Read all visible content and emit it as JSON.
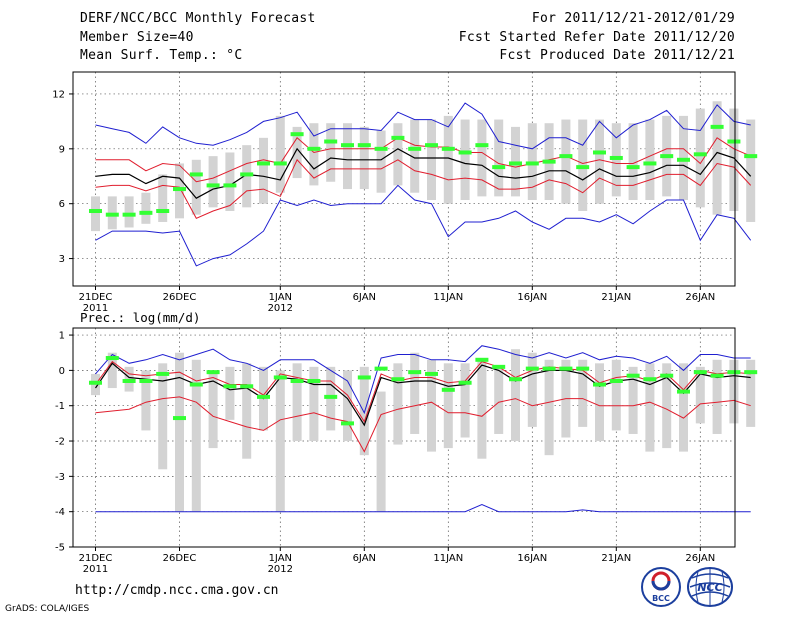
{
  "header": {
    "title": "DERF/NCC/BCC Monthly Forecast",
    "member_size": "Member Size=40",
    "variable": "Mean Surf. Temp.: °C",
    "period": "For 2011/12/21-2012/01/29",
    "started": "Fcst Started Refer Date 2011/12/20",
    "produced": "Fcst Produced Date 2011/12/21"
  },
  "footer": {
    "url": "http://cmdp.ncc.cma.gov.cn",
    "credit": "GrADS: COLA/IGES",
    "logo_bcc": "BCC",
    "logo_ncc": "NCC"
  },
  "colors": {
    "box": "#d3d3d3",
    "median": "#33ff33",
    "mean": "#000000",
    "inner": "#e01e2e",
    "outer": "#1f1fd0",
    "grid": "#555555"
  },
  "chart_data": [
    {
      "type": "box-ensemble",
      "title": "Mean Surf. Temp.: °C",
      "ylabel": "",
      "ylim": [
        1.5,
        13.2
      ],
      "yticks": [
        3,
        6,
        9,
        12
      ],
      "xticks": [
        {
          "day": 1,
          "label": "21DEC",
          "sub": "2011"
        },
        {
          "day": 6,
          "label": "26DEC",
          "sub": ""
        },
        {
          "day": 12,
          "label": "1JAN",
          "sub": "2012"
        },
        {
          "day": 17,
          "label": "6JAN",
          "sub": ""
        },
        {
          "day": 22,
          "label": "11JAN",
          "sub": ""
        },
        {
          "day": 27,
          "label": "16JAN",
          "sub": ""
        },
        {
          "day": 32,
          "label": "21JAN",
          "sub": ""
        },
        {
          "day": 37,
          "label": "26JAN",
          "sub": ""
        }
      ],
      "days": 40,
      "box_low": [
        4.5,
        4.6,
        4.7,
        4.9,
        5.0,
        5.2,
        5.4,
        5.8,
        5.6,
        5.8,
        6.0,
        6.6,
        7.4,
        7.0,
        7.2,
        6.8,
        6.8,
        6.6,
        7.0,
        6.6,
        6.2,
        6.0,
        6.2,
        6.4,
        6.4,
        6.4,
        6.2,
        6.2,
        6.0,
        5.6,
        6.0,
        6.4,
        6.2,
        6.2,
        6.4,
        6.2,
        5.8,
        5.4,
        5.6,
        5.0
      ],
      "box_high": [
        6.4,
        6.4,
        6.4,
        6.6,
        7.6,
        8.2,
        8.4,
        8.6,
        8.8,
        9.2,
        9.6,
        10.8,
        10.2,
        10.4,
        10.4,
        10.4,
        10.2,
        10.0,
        10.4,
        10.6,
        10.6,
        10.8,
        10.6,
        10.6,
        10.6,
        10.2,
        10.4,
        10.4,
        10.6,
        10.6,
        10.6,
        10.4,
        10.4,
        10.6,
        10.8,
        10.8,
        11.2,
        11.6,
        11.2,
        10.6
      ],
      "median": [
        5.6,
        5.4,
        5.4,
        5.5,
        5.6,
        6.8,
        7.6,
        7.0,
        7.0,
        7.6,
        8.2,
        8.2,
        9.8,
        9.0,
        9.4,
        9.2,
        9.2,
        9.0,
        9.6,
        9.0,
        9.2,
        9.0,
        8.8,
        9.2,
        8.0,
        8.2,
        8.2,
        8.3,
        8.6,
        8.0,
        8.8,
        8.5,
        8.0,
        8.2,
        8.6,
        8.4,
        8.7,
        10.2,
        9.4,
        8.6
      ],
      "mean": [
        7.5,
        7.6,
        7.6,
        7.1,
        7.5,
        7.4,
        6.3,
        6.8,
        7.0,
        7.6,
        7.5,
        7.3,
        9.0,
        7.9,
        8.5,
        8.4,
        8.4,
        8.4,
        9.0,
        8.5,
        8.5,
        8.5,
        8.2,
        8.1,
        7.5,
        7.4,
        7.5,
        7.8,
        7.8,
        7.3,
        7.9,
        7.5,
        7.5,
        7.7,
        8.1,
        8.1,
        7.6,
        8.8,
        8.5,
        7.5
      ],
      "inner_high": [
        8.4,
        8.4,
        8.4,
        7.8,
        8.2,
        8.1,
        7.2,
        7.4,
        7.8,
        8.2,
        8.4,
        8.2,
        9.6,
        8.8,
        9.0,
        9.0,
        9.0,
        9.0,
        9.6,
        9.2,
        9.1,
        9.1,
        8.8,
        8.8,
        8.2,
        8.0,
        8.2,
        8.4,
        8.6,
        8.2,
        8.4,
        8.2,
        8.2,
        8.6,
        9.0,
        9.0,
        8.2,
        9.6,
        9.0,
        8.6
      ],
      "inner_low": [
        6.9,
        7.0,
        7.0,
        6.7,
        7.0,
        6.9,
        5.2,
        5.6,
        5.9,
        6.7,
        6.8,
        6.4,
        8.4,
        7.4,
        7.9,
        7.9,
        7.9,
        7.9,
        8.4,
        7.8,
        7.6,
        7.3,
        7.4,
        7.3,
        6.8,
        6.8,
        6.9,
        7.3,
        7.1,
        6.6,
        7.4,
        7.0,
        7.0,
        7.3,
        7.6,
        7.6,
        7.0,
        8.2,
        8.0,
        7.0
      ],
      "outer_high": [
        10.3,
        10.1,
        9.9,
        9.3,
        10.2,
        9.6,
        9.3,
        9.2,
        9.5,
        9.9,
        10.5,
        10.7,
        11.0,
        9.7,
        10.1,
        10.1,
        10.1,
        10.0,
        11.0,
        10.6,
        10.6,
        10.2,
        11.5,
        10.9,
        9.4,
        9.2,
        9.0,
        9.6,
        9.6,
        9.2,
        10.5,
        9.6,
        10.3,
        10.6,
        11.1,
        10.1,
        10.0,
        11.4,
        10.5,
        10.3
      ],
      "outer_low": [
        4.0,
        4.5,
        4.5,
        4.5,
        4.4,
        4.5,
        2.6,
        3.0,
        3.2,
        3.8,
        4.5,
        6.2,
        5.9,
        6.2,
        5.9,
        6.0,
        6.0,
        6.0,
        7.0,
        6.2,
        6.0,
        4.2,
        5.0,
        5.0,
        5.2,
        5.6,
        5.0,
        4.6,
        5.2,
        5.2,
        5.0,
        5.4,
        4.9,
        5.6,
        6.2,
        6.2,
        4.0,
        5.4,
        5.2,
        4.0
      ]
    },
    {
      "type": "box-ensemble",
      "title": "Prec.: log(mm/d)",
      "ylabel": "",
      "ylim": [
        -5,
        1.2
      ],
      "yticks": [
        -5,
        -4,
        -3,
        -2,
        -1,
        0,
        1
      ],
      "xticks": [
        {
          "day": 1,
          "label": "21DEC",
          "sub": "2011"
        },
        {
          "day": 6,
          "label": "26DEC",
          "sub": ""
        },
        {
          "day": 12,
          "label": "1JAN",
          "sub": "2012"
        },
        {
          "day": 17,
          "label": "6JAN",
          "sub": ""
        },
        {
          "day": 22,
          "label": "11JAN",
          "sub": ""
        },
        {
          "day": 27,
          "label": "16JAN",
          "sub": ""
        },
        {
          "day": 32,
          "label": "21JAN",
          "sub": ""
        },
        {
          "day": 37,
          "label": "26JAN",
          "sub": ""
        }
      ],
      "days": 40,
      "box_low": [
        -0.7,
        -0.5,
        -0.6,
        -1.7,
        -2.8,
        -4.0,
        -4.0,
        -2.2,
        -1.4,
        -2.5,
        -1.7,
        -4.0,
        -2.0,
        -2.0,
        -1.7,
        -2.0,
        -2.4,
        -4.0,
        -2.1,
        -1.8,
        -2.3,
        -2.2,
        -1.9,
        -2.5,
        -1.8,
        -2.0,
        -1.6,
        -2.4,
        -1.9,
        -1.6,
        -2.0,
        -1.7,
        -1.8,
        -2.3,
        -2.2,
        -2.3,
        -1.5,
        -1.8,
        -1.5,
        -1.6
      ],
      "box_high": [
        -0.1,
        0.5,
        0.1,
        0.0,
        0.2,
        0.5,
        0.3,
        0.0,
        0.1,
        0.2,
        0.1,
        0.0,
        0.2,
        0.1,
        0.1,
        0.0,
        0.1,
        -0.6,
        0.2,
        0.5,
        0.3,
        0.2,
        0.2,
        0.3,
        0.1,
        0.6,
        0.5,
        0.3,
        0.3,
        0.3,
        0.2,
        0.3,
        0.1,
        0.2,
        0.2,
        0.2,
        0.1,
        0.3,
        0.3,
        0.3
      ],
      "median": [
        -0.35,
        0.35,
        -0.3,
        -0.3,
        -0.1,
        -1.35,
        -0.4,
        -0.05,
        -0.45,
        -0.45,
        -0.75,
        -0.2,
        -0.3,
        -0.3,
        -0.75,
        -1.5,
        -0.2,
        0.05,
        -0.25,
        -0.05,
        -0.1,
        -0.55,
        -0.35,
        0.3,
        0.1,
        -0.25,
        0.05,
        0.05,
        0.05,
        0.05,
        -0.4,
        -0.3,
        -0.15,
        -0.25,
        -0.15,
        -0.6,
        -0.05,
        -0.15,
        -0.05,
        -0.05
      ],
      "mean": [
        -0.5,
        0.2,
        -0.2,
        -0.25,
        -0.3,
        -0.2,
        -0.4,
        -0.3,
        -0.55,
        -0.5,
        -0.8,
        -0.2,
        -0.25,
        -0.4,
        -0.4,
        -0.8,
        -1.55,
        -0.2,
        -0.35,
        -0.3,
        -0.3,
        -0.45,
        -0.4,
        0.15,
        0.0,
        -0.3,
        -0.1,
        0.0,
        0.0,
        -0.1,
        -0.45,
        -0.3,
        -0.25,
        -0.4,
        -0.2,
        -0.65,
        -0.1,
        -0.2,
        -0.15,
        -0.2
      ],
      "inner_high": [
        -0.4,
        0.25,
        -0.1,
        -0.15,
        -0.1,
        -0.05,
        -0.3,
        -0.2,
        -0.4,
        -0.4,
        -0.7,
        -0.1,
        -0.2,
        -0.3,
        -0.3,
        -0.7,
        -1.45,
        -0.1,
        -0.3,
        -0.2,
        -0.2,
        -0.35,
        -0.3,
        0.25,
        0.1,
        -0.2,
        0.0,
        0.1,
        0.05,
        0.0,
        -0.35,
        -0.2,
        -0.15,
        -0.3,
        -0.1,
        -0.55,
        0.0,
        -0.1,
        -0.05,
        -0.1
      ],
      "inner_low": [
        -1.2,
        -1.15,
        -1.1,
        -0.9,
        -0.8,
        -0.75,
        -0.9,
        -1.3,
        -1.45,
        -1.6,
        -1.7,
        -1.4,
        -1.3,
        -1.2,
        -1.35,
        -1.45,
        -2.3,
        -1.25,
        -1.1,
        -1.0,
        -0.9,
        -1.2,
        -1.2,
        -1.3,
        -0.9,
        -0.8,
        -1.0,
        -0.9,
        -0.8,
        -0.8,
        -1.0,
        -1.0,
        -1.0,
        -0.9,
        -1.1,
        -1.35,
        -0.95,
        -0.9,
        -0.85,
        -1.0
      ],
      "outer_high": [
        -0.1,
        0.45,
        0.2,
        0.3,
        0.45,
        0.3,
        0.45,
        0.6,
        0.3,
        0.2,
        0.0,
        0.3,
        0.3,
        0.3,
        0.0,
        -0.3,
        -1.2,
        0.35,
        0.45,
        0.45,
        0.3,
        0.3,
        0.25,
        0.7,
        0.6,
        0.45,
        0.35,
        0.5,
        0.35,
        0.5,
        0.3,
        0.4,
        0.35,
        0.2,
        0.4,
        0.0,
        0.45,
        0.45,
        0.35,
        0.35
      ],
      "outer_low": [
        -4.0,
        -4.0,
        -4.0,
        -4.0,
        -4.0,
        -4.0,
        -4.0,
        -4.0,
        -4.0,
        -4.0,
        -4.0,
        -4.0,
        -4.0,
        -4.0,
        -4.0,
        -4.0,
        -4.0,
        -4.0,
        -4.0,
        -4.0,
        -4.0,
        -4.0,
        -4.0,
        -3.8,
        -4.0,
        -4.0,
        -4.0,
        -4.0,
        -4.0,
        -3.95,
        -4.0,
        -4.0,
        -4.0,
        -4.0,
        -4.0,
        -4.0,
        -4.0,
        -4.0,
        -4.0,
        -4.0
      ]
    }
  ]
}
